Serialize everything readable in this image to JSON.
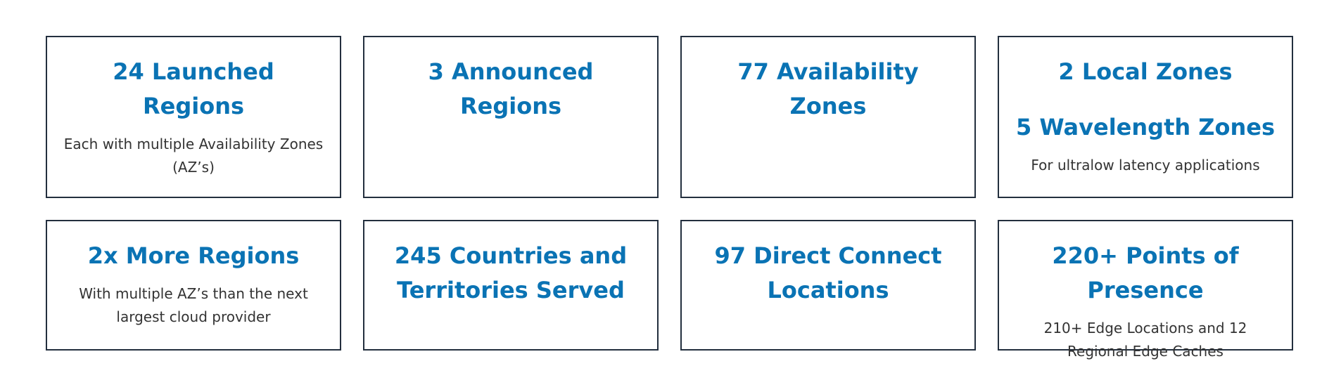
{
  "stats": [
    {
      "headings": [
        "24 Launched Regions"
      ],
      "description": "Each with multiple Availability Zones (AZ’s)"
    },
    {
      "headings": [
        "3 Announced Regions"
      ],
      "description": ""
    },
    {
      "headings": [
        "77 Availability Zones"
      ],
      "description": ""
    },
    {
      "headings": [
        "2 Local Zones",
        "5 Wavelength Zones"
      ],
      "description": "For ultralow latency applications"
    },
    {
      "headings": [
        "2x More Regions"
      ],
      "description": "With multiple AZ’s than the next largest cloud provider"
    },
    {
      "headings": [
        "245 Countries and Territories Served"
      ],
      "description": ""
    },
    {
      "headings": [
        "97 Direct Connect Locations"
      ],
      "description": ""
    },
    {
      "headings": [
        "220+ Points of Presence"
      ],
      "description": "210+ Edge Locations and 12 Regional Edge Caches"
    }
  ]
}
